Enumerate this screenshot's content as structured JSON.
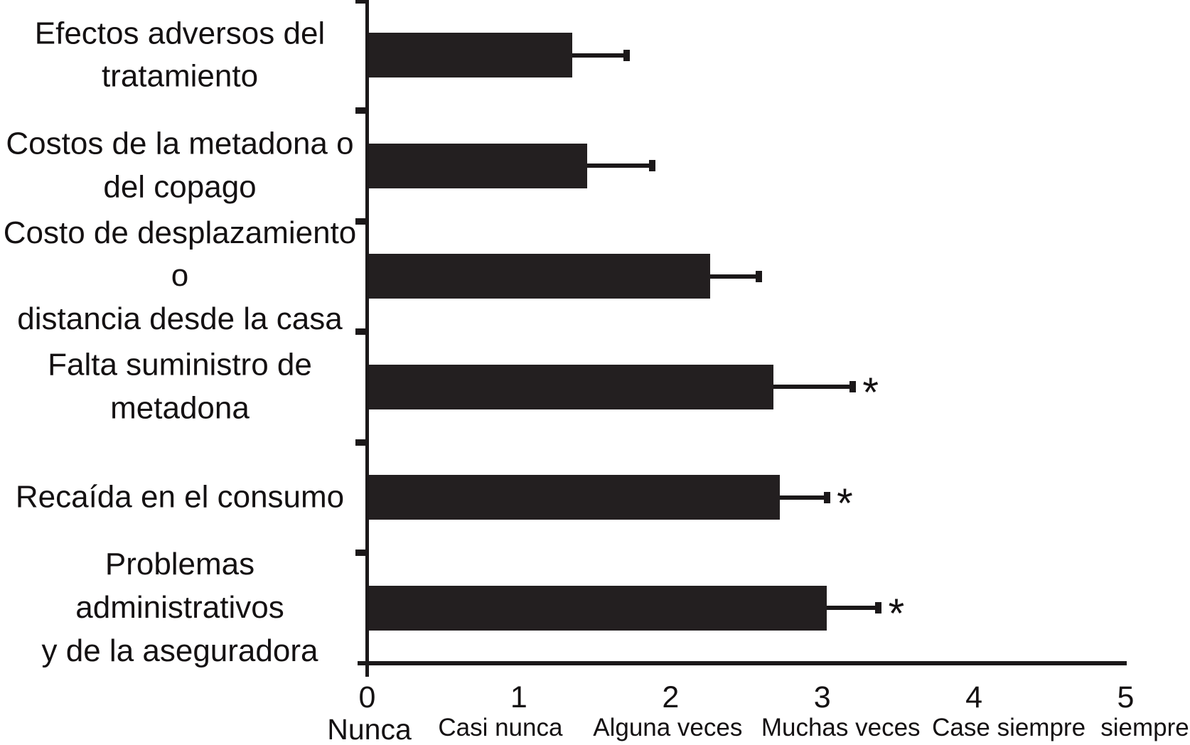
{
  "figure": {
    "background": "#ffffff",
    "bar_color": "#231f20",
    "axis_color": "#1b1819",
    "text_color": "#141112",
    "significance_marker": "*"
  },
  "chart_data": {
    "type": "bar",
    "orientation": "horizontal",
    "title": "",
    "xlabel": "",
    "ylabel": "",
    "xlim": [
      0,
      5
    ],
    "grid": false,
    "legend_position": "none",
    "categories": [
      "Efectos adversos del tratamiento",
      "Costos de la metadona o del copago",
      "Costo de desplazamiento o distancia desde la casa",
      "Falta suministro de metadona",
      "Recaída en el consumo",
      "Problemas administrativos y de la aseguradora"
    ],
    "category_lines": [
      [
        "Efectos adversos del",
        "tratamiento"
      ],
      [
        "Costos de la metadona o",
        "del copago"
      ],
      [
        "Costo de desplazamiento o",
        "distancia desde la casa"
      ],
      [
        "Falta suministro de",
        "metadona"
      ],
      [
        "Recaída en el consumo"
      ],
      [
        "Problemas administrativos",
        "y de la aseguradora"
      ]
    ],
    "values": [
      1.35,
      1.45,
      2.26,
      2.68,
      2.72,
      3.03
    ],
    "errors_plus": [
      0.36,
      0.43,
      0.32,
      0.52,
      0.31,
      0.34
    ],
    "significant": [
      false,
      false,
      false,
      true,
      true,
      true
    ],
    "x_tick_values": [
      0,
      1,
      2,
      3,
      4,
      5
    ],
    "x_tick_word_labels": [
      "Nunca",
      "Casi nunca",
      "Alguna veces",
      "Muchas veces",
      "Case siempre",
      "siempre"
    ]
  }
}
